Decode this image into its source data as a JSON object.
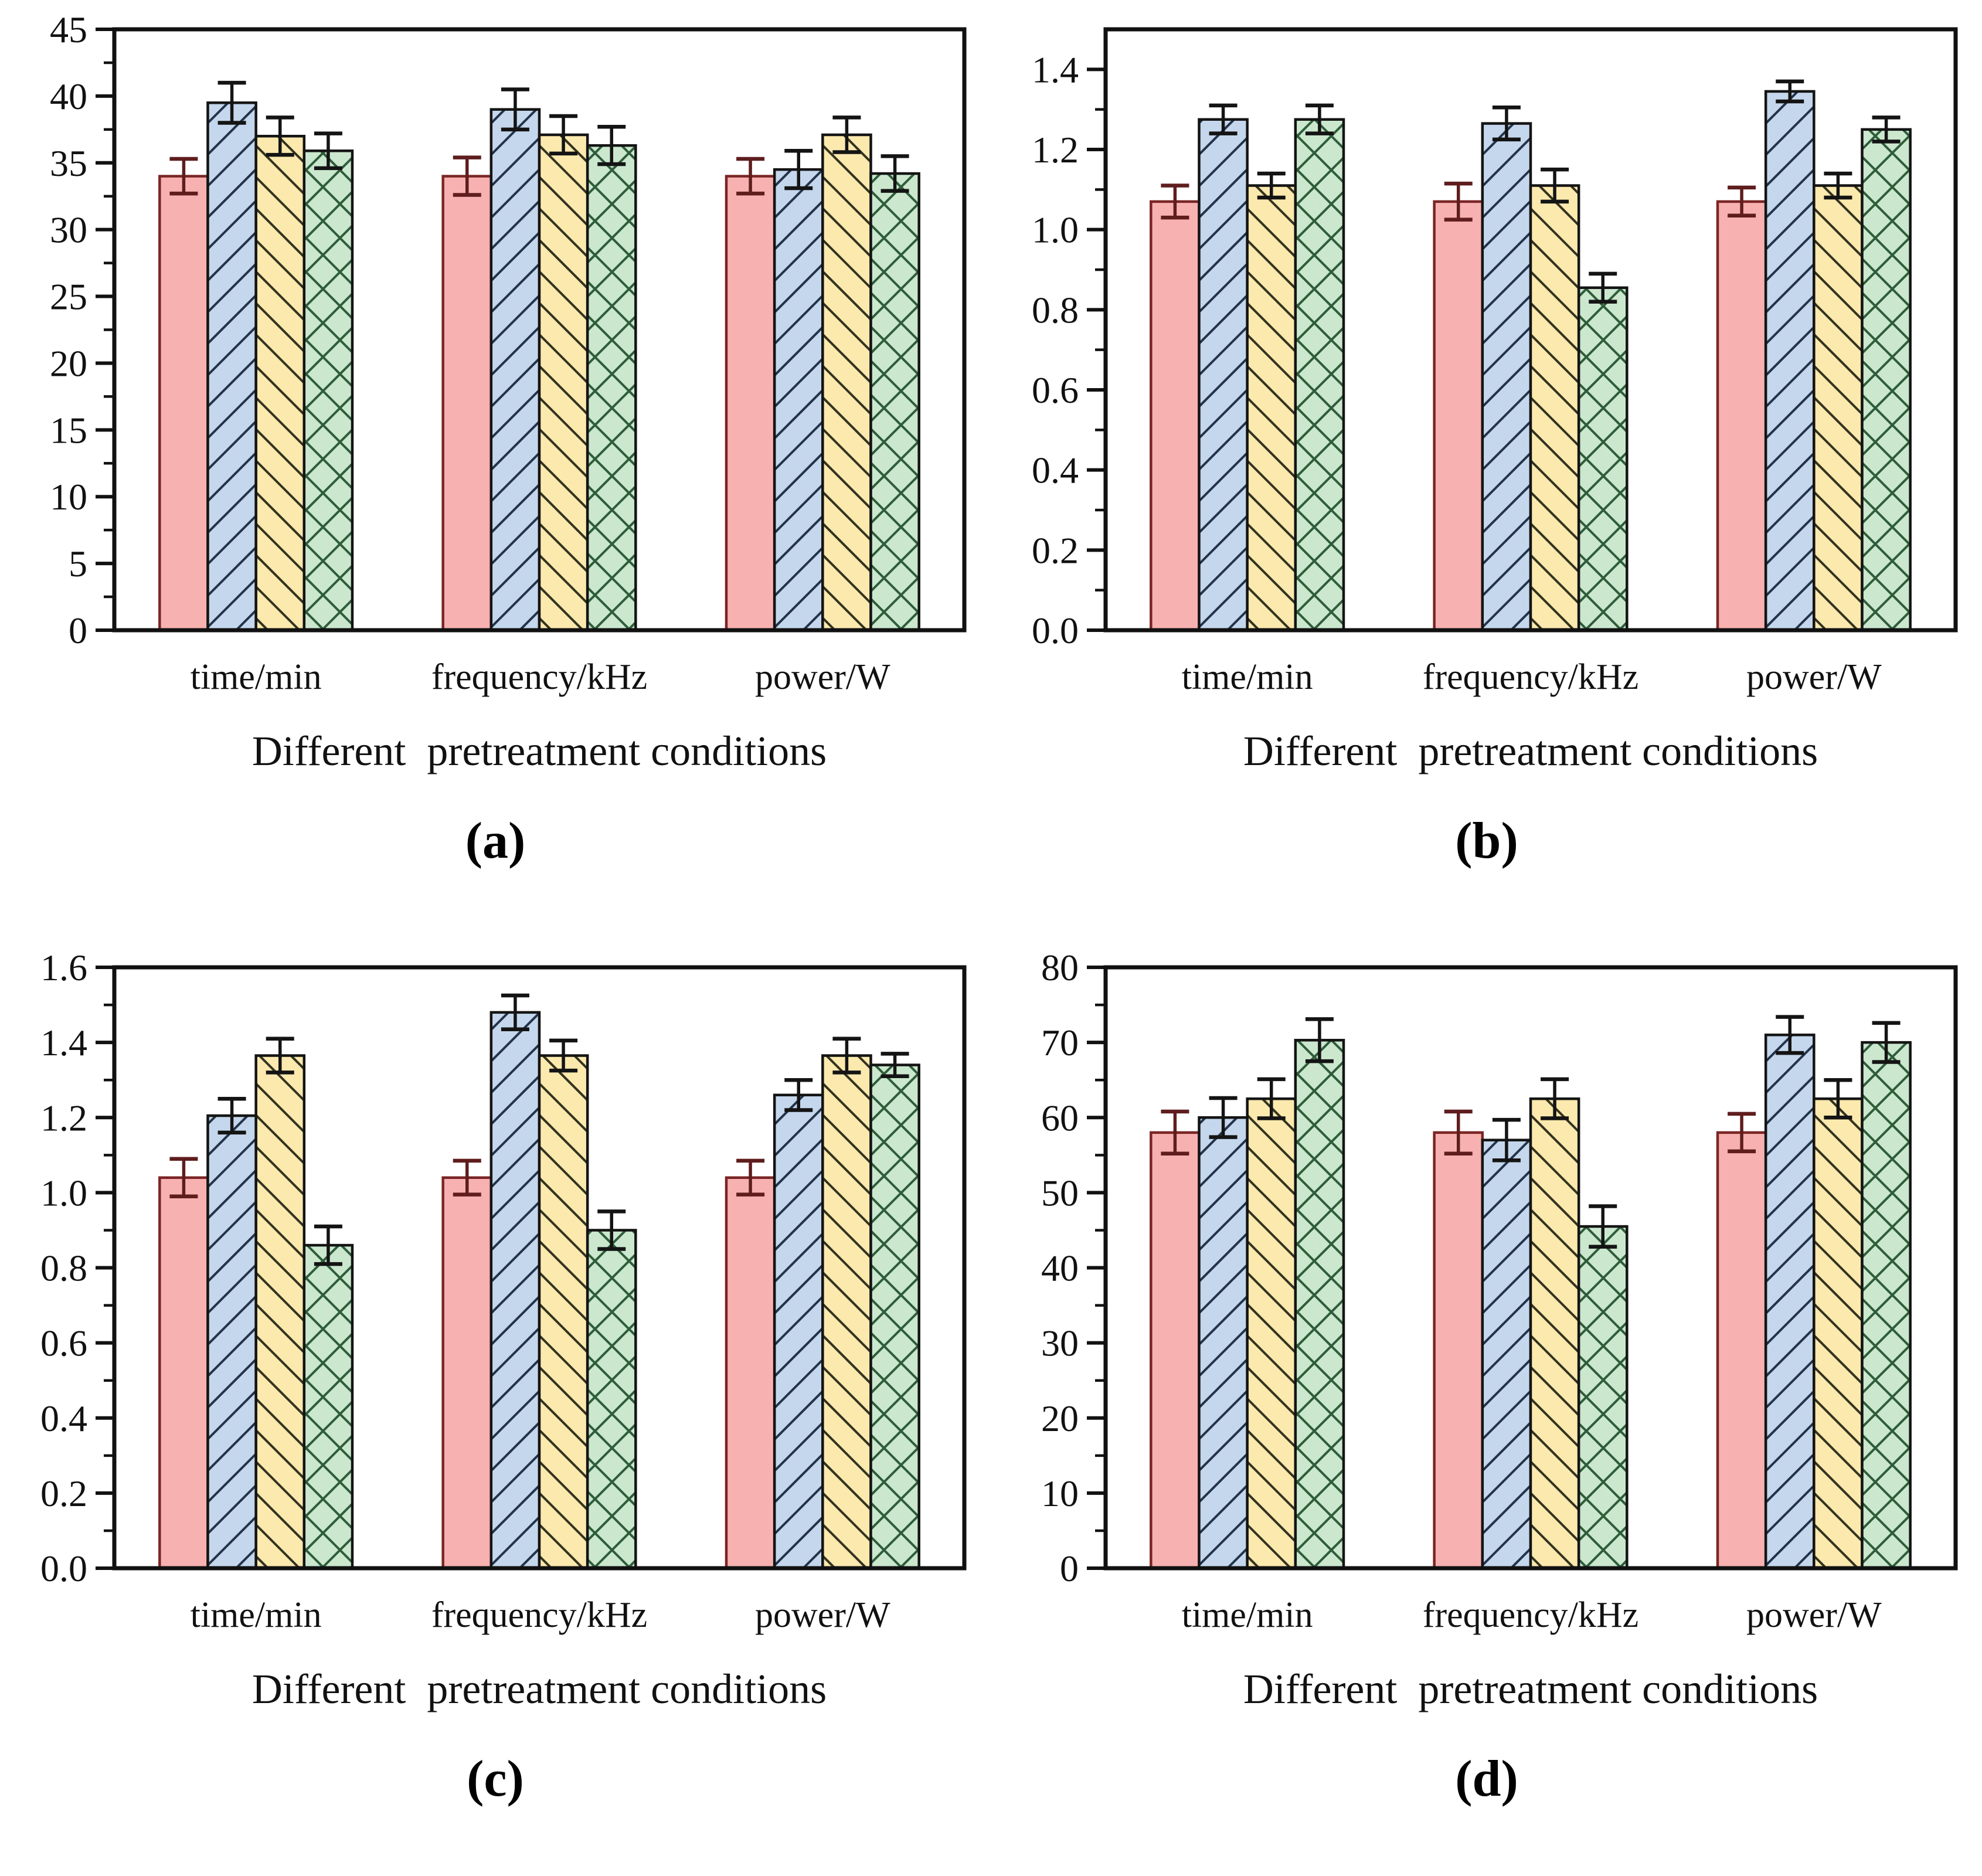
{
  "styles": {
    "axis_color": "#111111",
    "text_color": "#111111",
    "background": "#ffffff",
    "series_styles": [
      {
        "key": "solid-pink",
        "fill": "#f7b1b0",
        "hatch": "none",
        "hatch_color": "#7b2525",
        "edge": "#7b2525",
        "error_color": "#5f1d1d"
      },
      {
        "key": "hatch-blue",
        "fill": "#c5d7ec",
        "hatch": "diag-up",
        "hatch_color": "#22334a",
        "edge": "#141414",
        "error_color": "#141414"
      },
      {
        "key": "hatch-yellow",
        "fill": "#fce9ae",
        "hatch": "diag-down",
        "hatch_color": "#33331f",
        "edge": "#141414",
        "error_color": "#141414"
      },
      {
        "key": "cross-green",
        "fill": "#cbe8cf",
        "hatch": "cross",
        "hatch_color": "#2f5d3a",
        "edge": "#141414",
        "error_color": "#141414"
      }
    ]
  },
  "chart_data": [
    {
      "id": "a",
      "type": "bar",
      "caption": "(a)",
      "xlabel": "Different  pretreatment conditions",
      "categories": [
        "time/min",
        "frequency/kHz",
        "power/W"
      ],
      "ylim": [
        0,
        45
      ],
      "legend": "none",
      "grid": "off",
      "yticks": [
        {
          "v": 0,
          "label": "0"
        },
        {
          "v": 5,
          "label": "5"
        },
        {
          "v": 10,
          "label": "10"
        },
        {
          "v": 15,
          "label": "15"
        },
        {
          "v": 20,
          "label": "20"
        },
        {
          "v": 25,
          "label": "25"
        },
        {
          "v": 30,
          "label": "30"
        },
        {
          "v": 35,
          "label": "35"
        },
        {
          "v": 40,
          "label": "40"
        },
        {
          "v": 45,
          "label": "45"
        }
      ],
      "series": [
        {
          "name": "solid-pink",
          "values": [
            34.0,
            34.0,
            34.0
          ],
          "errors": [
            1.3,
            1.4,
            1.3
          ]
        },
        {
          "name": "hatch-blue",
          "values": [
            39.5,
            39.0,
            34.5
          ],
          "errors": [
            1.5,
            1.5,
            1.4
          ]
        },
        {
          "name": "hatch-yellow",
          "values": [
            37.0,
            37.1,
            37.1
          ],
          "errors": [
            1.4,
            1.4,
            1.3
          ]
        },
        {
          "name": "cross-green",
          "values": [
            35.9,
            36.3,
            34.2
          ],
          "errors": [
            1.3,
            1.4,
            1.3
          ]
        }
      ]
    },
    {
      "id": "b",
      "type": "bar",
      "caption": "(b)",
      "xlabel": "Different  pretreatment conditions",
      "categories": [
        "time/min",
        "frequency/kHz",
        "power/W"
      ],
      "ylim": [
        0,
        1.5
      ],
      "legend": "none",
      "grid": "off",
      "yticks": [
        {
          "v": 0.0,
          "label": "0.0"
        },
        {
          "v": 0.2,
          "label": "0.2"
        },
        {
          "v": 0.4,
          "label": "0.4"
        },
        {
          "v": 0.6,
          "label": "0.6"
        },
        {
          "v": 0.8,
          "label": "0.8"
        },
        {
          "v": 1.0,
          "label": "1.0"
        },
        {
          "v": 1.2,
          "label": "1.2"
        },
        {
          "v": 1.4,
          "label": "1.4"
        }
      ],
      "series": [
        {
          "name": "solid-pink",
          "values": [
            1.07,
            1.07,
            1.07
          ],
          "errors": [
            0.04,
            0.045,
            0.035
          ]
        },
        {
          "name": "hatch-blue",
          "values": [
            1.275,
            1.265,
            1.345
          ],
          "errors": [
            0.035,
            0.04,
            0.025
          ]
        },
        {
          "name": "hatch-yellow",
          "values": [
            1.11,
            1.11,
            1.11
          ],
          "errors": [
            0.03,
            0.04,
            0.03
          ]
        },
        {
          "name": "cross-green",
          "values": [
            1.275,
            0.855,
            1.25
          ],
          "errors": [
            0.035,
            0.035,
            0.03
          ]
        }
      ]
    },
    {
      "id": "c",
      "type": "bar",
      "caption": "(c)",
      "xlabel": "Different  pretreatment conditions",
      "categories": [
        "time/min",
        "frequency/kHz",
        "power/W"
      ],
      "ylim": [
        0,
        1.6
      ],
      "legend": "none",
      "grid": "off",
      "yticks": [
        {
          "v": 0.0,
          "label": "0.0"
        },
        {
          "v": 0.2,
          "label": "0.2"
        },
        {
          "v": 0.4,
          "label": "0.4"
        },
        {
          "v": 0.6,
          "label": "0.6"
        },
        {
          "v": 0.8,
          "label": "0.8"
        },
        {
          "v": 1.0,
          "label": "1.0"
        },
        {
          "v": 1.2,
          "label": "1.2"
        },
        {
          "v": 1.4,
          "label": "1.4"
        },
        {
          "v": 1.6,
          "label": "1.6"
        }
      ],
      "series": [
        {
          "name": "solid-pink",
          "values": [
            1.04,
            1.04,
            1.04
          ],
          "errors": [
            0.05,
            0.045,
            0.045
          ]
        },
        {
          "name": "hatch-blue",
          "values": [
            1.205,
            1.48,
            1.26
          ],
          "errors": [
            0.045,
            0.045,
            0.04
          ]
        },
        {
          "name": "hatch-yellow",
          "values": [
            1.365,
            1.365,
            1.365
          ],
          "errors": [
            0.045,
            0.04,
            0.045
          ]
        },
        {
          "name": "cross-green",
          "values": [
            0.86,
            0.9,
            1.34
          ],
          "errors": [
            0.05,
            0.05,
            0.03
          ]
        }
      ]
    },
    {
      "id": "d",
      "type": "bar",
      "caption": "(d)",
      "xlabel": "Different  pretreatment conditions",
      "categories": [
        "time/min",
        "frequency/kHz",
        "power/W"
      ],
      "ylim": [
        0,
        80
      ],
      "legend": "none",
      "grid": "off",
      "yticks": [
        {
          "v": 0,
          "label": "0"
        },
        {
          "v": 10,
          "label": "10"
        },
        {
          "v": 20,
          "label": "20"
        },
        {
          "v": 30,
          "label": "30"
        },
        {
          "v": 40,
          "label": "40"
        },
        {
          "v": 50,
          "label": "50"
        },
        {
          "v": 60,
          "label": "60"
        },
        {
          "v": 70,
          "label": "70"
        },
        {
          "v": 80,
          "label": "80"
        }
      ],
      "series": [
        {
          "name": "solid-pink",
          "values": [
            58,
            58,
            58
          ],
          "errors": [
            2.8,
            2.8,
            2.5
          ]
        },
        {
          "name": "hatch-blue",
          "values": [
            60,
            57,
            71
          ],
          "errors": [
            2.6,
            2.7,
            2.4
          ]
        },
        {
          "name": "hatch-yellow",
          "values": [
            62.5,
            62.5,
            62.5
          ],
          "errors": [
            2.6,
            2.6,
            2.5
          ]
        },
        {
          "name": "cross-green",
          "values": [
            70.3,
            45.5,
            70
          ],
          "errors": [
            2.8,
            2.7,
            2.6
          ]
        }
      ]
    }
  ]
}
